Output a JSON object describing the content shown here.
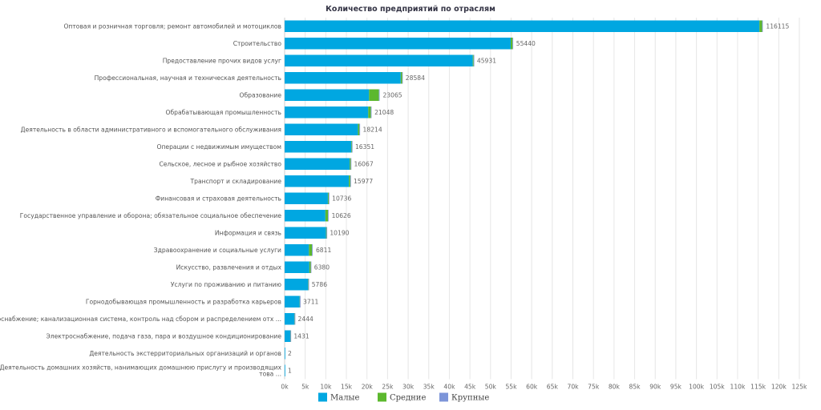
{
  "chart_data": {
    "type": "bar",
    "orientation": "horizontal",
    "stacked": true,
    "title": "Количество предприятий по отраслям",
    "xlim": [
      0,
      125000
    ],
    "x_ticks": [
      0,
      5000,
      10000,
      15000,
      20000,
      25000,
      30000,
      35000,
      40000,
      45000,
      50000,
      55000,
      60000,
      65000,
      70000,
      75000,
      80000,
      85000,
      90000,
      95000,
      100000,
      105000,
      110000,
      115000,
      120000,
      125000
    ],
    "x_tick_labels": [
      "0k",
      "5k",
      "10k",
      "15k",
      "20k",
      "25k",
      "30k",
      "35k",
      "40k",
      "45k",
      "50k",
      "55k",
      "60k",
      "65k",
      "70k",
      "75k",
      "80k",
      "85k",
      "90k",
      "95k",
      "100k",
      "105k",
      "110k",
      "115k",
      "120k",
      "125k"
    ],
    "grid": true,
    "legend_position": "bottom",
    "categories": [
      "Оптовая и розничная торговля; ремонт автомобилей и мотоциклов",
      "Строительство",
      "Предоставление прочих видов услуг",
      "Профессиональная, научная и техническая деятельность",
      "Образование",
      "Обрабатывающая промышленность",
      "Деятельность в области административного и вспомогательного обслуживания",
      "Операции с недвижимым имуществом",
      "Сельское, лесное и рыбное хозяйство",
      "Транспорт и складирование",
      "Финансовая и страховая деятельность",
      "Государственное управление и оборона; обязательное социальное обеспечение",
      "Информация и связь",
      "Здравоохранение и социальные услуги",
      "Искусство, развлечения и отдых",
      "Услуги по проживанию и питанию",
      "Горнодобывающая промышленность и разработка карьеров",
      "Водоснабжение; канализационная система, контроль над сбором и распределением отх ...",
      "Электроснабжение, подача газа, пара и воздушное кондиционирование",
      "Деятельность экстерриториальных организаций и органов",
      [
        "Деятельность домашних хозяйств, нанимающих домашнюю прислугу и производящих",
        "това ..."
      ]
    ],
    "totals": [
      116115,
      55440,
      45931,
      28584,
      23065,
      21048,
      18214,
      16351,
      16067,
      15977,
      10736,
      10626,
      10190,
      6811,
      6380,
      5786,
      3711,
      2444,
      1431,
      2,
      1
    ],
    "series": [
      {
        "name": "Малые",
        "color": "#00a7e1",
        "values": [
          115300,
          54900,
          45700,
          28200,
          20500,
          20300,
          17800,
          16200,
          15800,
          15600,
          10500,
          9900,
          10050,
          5900,
          6000,
          5700,
          3650,
          2380,
          1380,
          2,
          1
        ]
      },
      {
        "name": "Средние",
        "color": "#5cb82e",
        "values": [
          650,
          450,
          200,
          330,
          2400,
          650,
          370,
          130,
          250,
          350,
          200,
          620,
          130,
          740,
          340,
          80,
          55,
          60,
          45,
          0,
          0
        ]
      },
      {
        "name": "Крупные",
        "color": "#7d95d9",
        "values": [
          165,
          90,
          31,
          54,
          165,
          98,
          44,
          21,
          17,
          27,
          36,
          106,
          10,
          171,
          40,
          6,
          6,
          4,
          6,
          0,
          0
        ]
      }
    ]
  }
}
